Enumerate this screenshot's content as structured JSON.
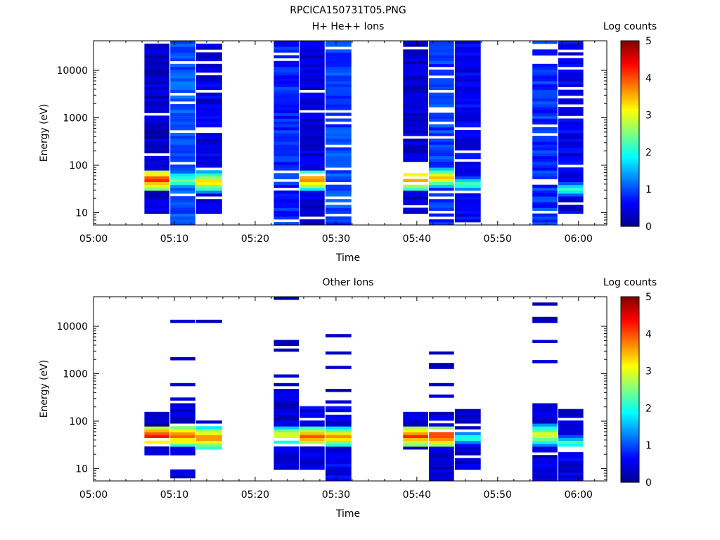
{
  "figure_title": "RPCICA150731T05.PNG",
  "colors": {
    "colormap": [
      "#00008f",
      "#0000ff",
      "#00ffff",
      "#ffff00",
      "#ff0000",
      "#800000"
    ]
  },
  "chart_data": [
    {
      "type": "heatmap",
      "title": "H+ He++ Ions",
      "xlabel": "Time",
      "ylabel": "Energy (eV)",
      "colorbar_label": "Log counts",
      "x_ticks": [
        "05:00",
        "05:10",
        "05:20",
        "05:30",
        "05:40",
        "05:50",
        "06:00"
      ],
      "x_range_minutes": [
        0,
        63.5
      ],
      "y_scale": "log",
      "y_range": [
        5.5,
        42000
      ],
      "y_ticks": [
        "10",
        "100",
        "1000",
        "10000"
      ],
      "colorbar_range": [
        0,
        5
      ],
      "colorbar_ticks": [
        "0",
        "1",
        "2",
        "3",
        "4",
        "5"
      ],
      "columns": [
        {
          "t0": 6.3,
          "t1": 9.4,
          "emin": 9,
          "emax": 40000,
          "base": 0.35,
          "peak": 4.2,
          "peak_e": 50
        },
        {
          "t0": 9.5,
          "t1": 12.6,
          "emin": 5.5,
          "emax": 40000,
          "base": 1.0,
          "peak": 2.6,
          "peak_e": 50
        },
        {
          "t0": 12.7,
          "t1": 15.9,
          "emin": 9.5,
          "emax": 40000,
          "base": 0.45,
          "peak": 3.4,
          "peak_e": 45
        },
        {
          "t0": 22.3,
          "t1": 25.4,
          "emin": 5.5,
          "emax": 40000,
          "base": 0.8,
          "peak": 0.9,
          "peak_e": 60
        },
        {
          "t0": 25.5,
          "t1": 28.6,
          "emin": 5.5,
          "emax": 40000,
          "base": 0.4,
          "peak": 3.8,
          "peak_e": 50
        },
        {
          "t0": 28.7,
          "t1": 31.9,
          "emin": 5.5,
          "emax": 40000,
          "base": 0.95,
          "peak": 0.9,
          "peak_e": 50
        },
        {
          "t0": 38.3,
          "t1": 41.4,
          "emin": 9.5,
          "emax": 40000,
          "base": 0.4,
          "peak": 3.9,
          "peak_e": 50
        },
        {
          "t0": 41.5,
          "t1": 44.6,
          "emin": 5.5,
          "emax": 40000,
          "base": 0.9,
          "peak": 3.4,
          "peak_e": 55
        },
        {
          "t0": 44.7,
          "t1": 47.9,
          "emin": 5.5,
          "emax": 40000,
          "base": 0.55,
          "peak": 2.2,
          "peak_e": 40
        },
        {
          "t0": 54.3,
          "t1": 57.4,
          "emin": 5.5,
          "emax": 40000,
          "base": 0.85,
          "peak": 0.9,
          "peak_e": 50
        },
        {
          "t0": 57.5,
          "t1": 60.6,
          "emin": 9.5,
          "emax": 40000,
          "base": 0.5,
          "peak": 2.2,
          "peak_e": 32
        }
      ]
    },
    {
      "type": "heatmap",
      "title": "Other Ions",
      "xlabel": "Time",
      "ylabel": "Energy (eV)",
      "colorbar_label": "Log counts",
      "x_ticks": [
        "05:00",
        "05:10",
        "05:20",
        "05:30",
        "05:40",
        "05:50",
        "06:00"
      ],
      "x_range_minutes": [
        0,
        63.5
      ],
      "y_scale": "log",
      "y_range": [
        5.5,
        42000
      ],
      "y_ticks": [
        "10",
        "100",
        "1000",
        "10000"
      ],
      "colorbar_range": [
        0,
        5
      ],
      "colorbar_ticks": [
        "0",
        "1",
        "2",
        "3",
        "4",
        "5"
      ],
      "columns": [
        {
          "t0": 6.3,
          "t1": 9.4,
          "emin": 20,
          "emax": 160,
          "base": 0.3,
          "peak": 4.3,
          "peak_e": 50,
          "tail_e": [
            105
          ]
        },
        {
          "t0": 9.5,
          "t1": 12.6,
          "emin": 20,
          "emax": 320,
          "base": 0.35,
          "peak": 4.1,
          "peak_e": 50,
          "tail_e": [
            12000,
            2000,
            560
          ],
          "low": [
            6,
            9.5
          ]
        },
        {
          "t0": 12.7,
          "t1": 15.9,
          "emin": 25,
          "emax": 100,
          "base": 0.45,
          "peak": 3.9,
          "peak_e": 45,
          "tail_e": [
            13000
          ]
        },
        {
          "t0": 22.3,
          "t1": 25.4,
          "emin": 10,
          "emax": 500,
          "base": 0.4,
          "peak": 3.2,
          "peak_e": 50,
          "tail_e": [
            37000,
            4800,
            4000,
            3000,
            860,
            600,
            400,
            300
          ]
        },
        {
          "t0": 25.5,
          "t1": 28.6,
          "emin": 10,
          "emax": 210,
          "base": 0.45,
          "peak": 4.0,
          "peak_e": 48,
          "tail_e": []
        },
        {
          "t0": 28.7,
          "t1": 31.9,
          "emin": 5.5,
          "emax": 200,
          "base": 0.5,
          "peak": 3.6,
          "peak_e": 48,
          "tail_e": [
            6800,
            6000,
            2800,
            1350,
            430,
            250
          ]
        },
        {
          "t0": 38.3,
          "t1": 41.4,
          "emin": 26,
          "emax": 160,
          "base": 0.35,
          "peak": 4.2,
          "peak_e": 50,
          "tail_e": []
        },
        {
          "t0": 41.5,
          "t1": 44.6,
          "emin": 5.5,
          "emax": 160,
          "base": 0.4,
          "peak": 4.3,
          "peak_e": 50,
          "tail_e": [
            2900,
            1500,
            1400,
            620,
            360
          ]
        },
        {
          "t0": 44.7,
          "t1": 47.9,
          "emin": 10,
          "emax": 190,
          "base": 0.4,
          "peak": 2.2,
          "peak_e": 45,
          "tail_e": []
        },
        {
          "t0": 54.3,
          "t1": 57.4,
          "emin": 5.5,
          "emax": 250,
          "base": 0.4,
          "peak": 3.2,
          "peak_e": 52,
          "tail_e": [
            28000,
            15000,
            13000,
            5000,
            1800
          ]
        },
        {
          "t0": 57.5,
          "t1": 60.6,
          "emin": 5.5,
          "emax": 190,
          "base": 0.45,
          "peak": 2.3,
          "peak_e": 35,
          "tail_e": []
        }
      ]
    }
  ]
}
